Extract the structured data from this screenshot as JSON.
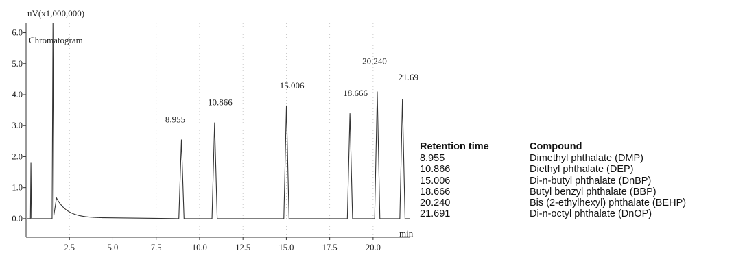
{
  "chart_data": {
    "type": "line",
    "title": "Chromatogram",
    "ylabel": "uV(x1,000,000)",
    "xlabel": "min",
    "xlim": [
      0.0,
      22.1
    ],
    "ylim": [
      -0.6,
      6.3
    ],
    "xticks": [
      2.5,
      5.0,
      7.5,
      10.0,
      12.5,
      15.0,
      17.5,
      20.0
    ],
    "yticks": [
      0.0,
      1.0,
      2.0,
      3.0,
      4.0,
      5.0,
      6.0
    ],
    "grid": "vertical-dotted",
    "line_color": "#333333",
    "peaks": [
      {
        "label": "8.955",
        "x": 8.955,
        "y": 2.55
      },
      {
        "label": "10.866",
        "x": 10.866,
        "y": 3.1
      },
      {
        "label": "15.006",
        "x": 15.006,
        "y": 3.65
      },
      {
        "label": "18.666",
        "x": 18.666,
        "y": 3.4
      },
      {
        "label": "20.240",
        "x": 20.24,
        "y": 4.1
      },
      {
        "label": "21.691",
        "x": 21.691,
        "y": 3.85
      }
    ],
    "solvent_front": {
      "x": 1.55,
      "y": 6.3
    }
  },
  "table": {
    "headers": [
      "Retention time",
      "Compound"
    ],
    "rows": [
      [
        "8.955",
        "Dimethyl phthalate (DMP)"
      ],
      [
        "10.866",
        "Diethyl phthalate (DEP)"
      ],
      [
        "15.006",
        "Di-n-butyl phthalate (DnBP)"
      ],
      [
        "18.666",
        "Butyl benzyl phthalate (BBP)"
      ],
      [
        "20.240",
        "Bis (2-ethylhexyl) phthalate (BEHP)"
      ],
      [
        "21.691",
        "Di-n-octyl phthalate (DnOP)"
      ]
    ]
  }
}
